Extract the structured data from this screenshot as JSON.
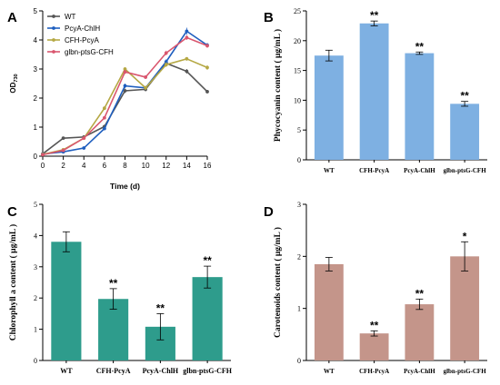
{
  "chart_data": [
    {
      "panel": "A",
      "type": "line",
      "xlabel": "Time (d)",
      "ylabel": "OD",
      "ylabel_sub": "730",
      "x": [
        0,
        2,
        4,
        6,
        8,
        10,
        12,
        14,
        16
      ],
      "xticks": [
        "0",
        "2",
        "4",
        "6",
        "8",
        "10",
        "12",
        "14",
        "16"
      ],
      "xlim": [
        0,
        16
      ],
      "yticks": [
        "0",
        "1",
        "2",
        "3",
        "4",
        "5"
      ],
      "ylim": [
        0,
        5
      ],
      "legend_position": "top-left",
      "series": [
        {
          "name": "WT",
          "color": "#555555",
          "values": [
            0.08,
            0.62,
            0.66,
            1.02,
            2.25,
            2.3,
            3.2,
            2.92,
            2.22
          ],
          "errors": [
            0.03,
            0.04,
            0.04,
            0.06,
            0.08,
            0.07,
            0.1,
            0.08,
            0.06
          ]
        },
        {
          "name": "PcyA-ChlH",
          "color": "#1f5fbf",
          "values": [
            0.07,
            0.15,
            0.28,
            0.95,
            2.42,
            2.35,
            3.25,
            4.3,
            3.82
          ],
          "errors": [
            0.02,
            0.03,
            0.03,
            0.05,
            0.08,
            0.07,
            0.08,
            0.12,
            0.08
          ]
        },
        {
          "name": "CFH-PcyA",
          "color": "#b5a844",
          "values": [
            0.06,
            0.22,
            0.62,
            1.65,
            3.0,
            2.35,
            3.15,
            3.35,
            3.05
          ],
          "errors": [
            0.02,
            0.03,
            0.04,
            0.06,
            0.06,
            0.07,
            0.08,
            0.06,
            0.08
          ]
        },
        {
          "name": "glbn-ptsG-CFH",
          "color": "#d9566e",
          "values": [
            0.05,
            0.2,
            0.62,
            1.32,
            2.9,
            2.72,
            3.55,
            4.08,
            3.8
          ],
          "errors": [
            0.02,
            0.03,
            0.04,
            0.05,
            0.07,
            0.06,
            0.08,
            0.08,
            0.07
          ]
        }
      ]
    },
    {
      "panel": "B",
      "type": "bar",
      "ylabel": "Phycocyanin content ( μg/mL )",
      "categories": [
        "WT",
        "CFH-PcyA",
        "PcyA-ChlH",
        "glbn-ptsG-CFH"
      ],
      "values": [
        17.5,
        22.9,
        17.9,
        9.4
      ],
      "errors": [
        0.9,
        0.4,
        0.2,
        0.4
      ],
      "significance": [
        "",
        "**",
        "**",
        "**"
      ],
      "yticks": [
        "0",
        "5",
        "10",
        "15",
        "20",
        "25"
      ],
      "ylim": [
        0,
        25
      ],
      "color": "#7eb0e2"
    },
    {
      "panel": "C",
      "type": "bar",
      "ylabel": "Chlorophyll a content ( μg/mL )",
      "categories": [
        "WT",
        "CFH-PcyA",
        "PcyA-ChlH",
        "glbn-ptsG-CFH"
      ],
      "values": [
        3.8,
        1.97,
        1.08,
        2.67
      ],
      "errors": [
        0.32,
        0.33,
        0.42,
        0.35
      ],
      "significance": [
        "",
        "**",
        "**",
        "**"
      ],
      "yticks": [
        "0",
        "1",
        "2",
        "3",
        "4",
        "5"
      ],
      "ylim": [
        0,
        5
      ],
      "color": "#2e9c8c"
    },
    {
      "panel": "D",
      "type": "bar",
      "ylabel": "Carotenoids content ( μg/mL )",
      "categories": [
        "WT",
        "CFH-PcyA",
        "PcyA-ChlH",
        "glbn-ptsG-CFH"
      ],
      "values": [
        1.85,
        0.52,
        1.08,
        2.0
      ],
      "errors": [
        0.13,
        0.05,
        0.1,
        0.28
      ],
      "significance": [
        "",
        "**",
        "**",
        "*"
      ],
      "yticks": [
        "0",
        "1",
        "2",
        "3"
      ],
      "ylim": [
        0,
        3
      ],
      "color": "#c4958a"
    }
  ]
}
